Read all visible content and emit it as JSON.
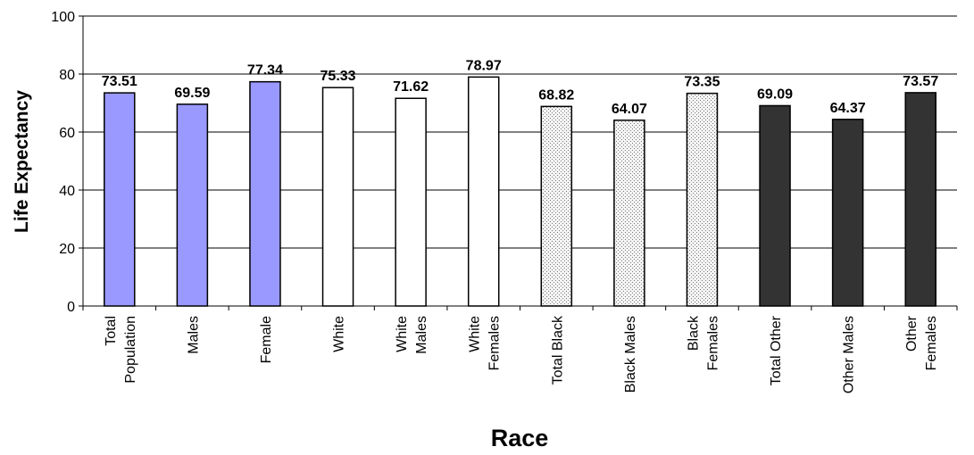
{
  "chart_data": {
    "type": "bar",
    "title": "",
    "xlabel": "Race",
    "ylabel": "Life Expectancy",
    "ylim": [
      0,
      100
    ],
    "yticks": [
      0,
      20,
      40,
      60,
      80,
      100
    ],
    "grid": true,
    "categories": [
      [
        "Total",
        "Population"
      ],
      [
        "Males"
      ],
      [
        "Female"
      ],
      [
        "White"
      ],
      [
        "White",
        "Males"
      ],
      [
        "White",
        "Females"
      ],
      [
        "Total Black"
      ],
      [
        "Black Males"
      ],
      [
        "Black",
        "Females"
      ],
      [
        "Total Other"
      ],
      [
        "Other Males"
      ],
      [
        "Other",
        "Females"
      ]
    ],
    "values": [
      73.51,
      69.59,
      77.34,
      75.33,
      71.62,
      78.97,
      68.82,
      64.07,
      73.35,
      69.09,
      64.37,
      73.57
    ],
    "value_labels": [
      "73.51",
      "69.59",
      "77.34",
      "75.33",
      "71.62",
      "78.97",
      "68.82",
      "64.07",
      "73.35",
      "69.09",
      "64.37",
      "73.57"
    ],
    "bar_styles": [
      "blue",
      "blue",
      "blue",
      "white",
      "white",
      "white",
      "dotted",
      "dotted",
      "dotted",
      "dark",
      "dark",
      "dark"
    ],
    "colors": {
      "blue": "#9999ff",
      "white": "#ffffff",
      "dotted": "#e8e8e8",
      "dark": "#333333",
      "outline": "#000000",
      "grid": "#000000"
    }
  }
}
